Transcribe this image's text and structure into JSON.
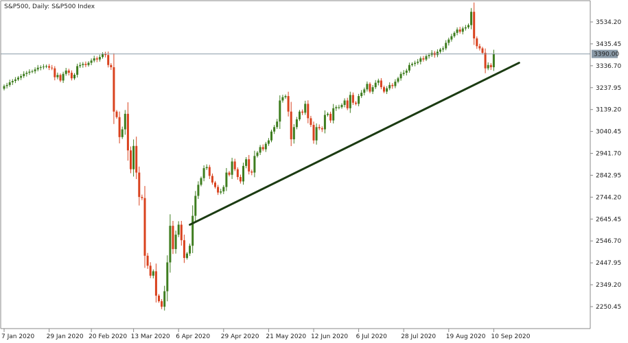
{
  "chart_data": {
    "type": "candlestick",
    "title": "S&P500, Daily:  S&P500 Index",
    "ylim": [
      2200,
      3600
    ],
    "yticks": [
      3534.2,
      3435.45,
      3336.7,
      3237.95,
      3139.2,
      3040.45,
      2941.7,
      2842.95,
      2744.2,
      2645.45,
      2546.7,
      2447.95,
      2349.2,
      2250.45
    ],
    "ytick_labels": [
      "3534.20",
      "3435.45",
      "3336.70",
      "3237.95",
      "3139.20",
      "3040.45",
      "2941.70",
      "2842.95",
      "2744.20",
      "2645.45",
      "2546.70",
      "2447.95",
      "2349.20",
      "2250.45"
    ],
    "xtick_labels": [
      "7 Jan 2020",
      "29 Jan 2020",
      "20 Feb 2020",
      "13 Mar 2020",
      "6 Apr 2020",
      "29 Apr 2020",
      "21 May 2020",
      "12 Jun 2020",
      "6 Jul 2020",
      "28 Jul 2020",
      "19 Aug 2020",
      "10 Sep 2020"
    ],
    "xtick_index": [
      0,
      16,
      31,
      46,
      62,
      78,
      94,
      110,
      126,
      142,
      158,
      174
    ],
    "current_price": 3390.0,
    "current_price_label": "3390.00",
    "colors": {
      "up": "#3e7d1f",
      "down": "#d9421e",
      "trendline": "#1b3b12",
      "hline": "#8a9aa8",
      "price_box": "#8a9aa8"
    },
    "trendline": [
      {
        "i": 66,
        "price": 2620
      },
      {
        "i": 183,
        "price": 3350
      }
    ],
    "closes": [
      3245,
      3250,
      3262,
      3268,
      3275,
      3283,
      3290,
      3300,
      3305,
      3310,
      3312,
      3320,
      3328,
      3330,
      3333,
      3335,
      3328,
      3325,
      3285,
      3295,
      3270,
      3300,
      3315,
      3305,
      3280,
      3296,
      3335,
      3340,
      3345,
      3340,
      3350,
      3360,
      3370,
      3365,
      3376,
      3390,
      3385,
      3340,
      3330,
      3130,
      3105,
      3015,
      3050,
      3120,
      2955,
      2870,
      2975,
      2855,
      2745,
      2740,
      2480,
      2435,
      2390,
      2410,
      2300,
      2275,
      2250,
      2320,
      2450,
      2615,
      2510,
      2575,
      2620,
      2550,
      2470,
      2490,
      2525,
      2660,
      2750,
      2800,
      2830,
      2875,
      2880,
      2840,
      2810,
      2790,
      2765,
      2770,
      2790,
      2855,
      2845,
      2905,
      2870,
      2835,
      2815,
      2885,
      2915,
      2860,
      2855,
      2930,
      2945,
      2970,
      2960,
      2985,
      3000,
      3040,
      3060,
      3085,
      3180,
      3195,
      3200,
      3130,
      3005,
      3060,
      3095,
      3130,
      3125,
      3165,
      3100,
      3070,
      3000,
      3060,
      3055,
      3050,
      3115,
      3120,
      3090,
      3145,
      3150,
      3150,
      3160,
      3180,
      3145,
      3205,
      3170,
      3165,
      3200,
      3215,
      3230,
      3255,
      3220,
      3240,
      3260,
      3270,
      3240,
      3220,
      3235,
      3250,
      3245,
      3265,
      3280,
      3300,
      3305,
      3315,
      3340,
      3345,
      3350,
      3355,
      3370,
      3365,
      3380,
      3385,
      3395,
      3385,
      3400,
      3410,
      3415,
      3440,
      3455,
      3470,
      3485,
      3500,
      3490,
      3505,
      3510,
      3520,
      3580,
      3460,
      3425,
      3415,
      3395,
      3325,
      3340,
      3330,
      3390
    ]
  }
}
